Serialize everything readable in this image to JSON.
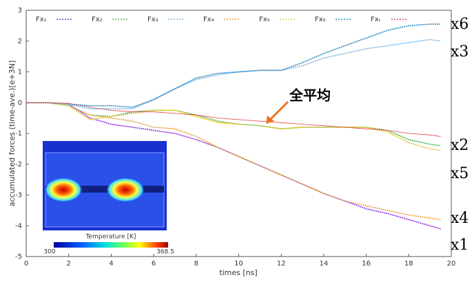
{
  "chart_data": {
    "type": "line",
    "xlabel": "times [ns]",
    "ylabel": "accumulated forces (time-ave.)[e+3N]",
    "x": [
      0,
      1,
      2,
      3,
      4,
      5,
      6,
      7,
      8,
      9,
      10,
      11,
      12,
      13,
      14,
      15,
      16,
      17,
      18,
      19,
      19.5
    ],
    "xlim": [
      0,
      20
    ],
    "xticks": [
      0,
      2,
      4,
      6,
      8,
      10,
      12,
      14,
      16,
      18,
      20
    ],
    "ylim": [
      -5,
      3
    ],
    "yticks": [
      -5,
      -4,
      -3,
      -2,
      -1,
      0,
      1,
      2,
      3
    ],
    "series": [
      {
        "name": "Fx₁",
        "color": "#8a2be2",
        "values": [
          0,
          0,
          -0.05,
          -0.5,
          -0.7,
          -0.8,
          -0.9,
          -1.0,
          -1.2,
          -1.45,
          -1.75,
          -2.05,
          -2.35,
          -2.65,
          -2.95,
          -3.2,
          -3.45,
          -3.6,
          -3.8,
          -4.0,
          -4.1
        ]
      },
      {
        "name": "Fx₂",
        "color": "#4caf50",
        "values": [
          0,
          0,
          -0.1,
          -0.4,
          -0.45,
          -0.3,
          -0.25,
          -0.25,
          -0.4,
          -0.6,
          -0.7,
          -0.75,
          -0.85,
          -0.8,
          -0.8,
          -0.8,
          -0.8,
          -0.9,
          -1.2,
          -1.35,
          -1.4
        ]
      },
      {
        "name": "Fx₃",
        "color": "#7ab8e8",
        "values": [
          0,
          0,
          -0.05,
          -0.2,
          -0.2,
          -0.2,
          0.1,
          0.45,
          0.75,
          0.9,
          1.0,
          1.05,
          1.05,
          1.2,
          1.45,
          1.6,
          1.75,
          1.85,
          1.95,
          2.05,
          2.0
        ]
      },
      {
        "name": "Fx₄",
        "color": "#f0a030",
        "values": [
          0,
          0,
          -0.1,
          -0.4,
          -0.5,
          -0.6,
          -0.8,
          -0.85,
          -1.1,
          -1.45,
          -1.75,
          -2.05,
          -2.35,
          -2.65,
          -2.95,
          -3.2,
          -3.35,
          -3.5,
          -3.65,
          -3.75,
          -3.8
        ]
      },
      {
        "name": "Fx₅",
        "color": "#e6c820",
        "values": [
          0,
          0,
          -0.1,
          -0.55,
          -0.45,
          -0.35,
          -0.25,
          -0.25,
          -0.45,
          -0.65,
          -0.7,
          -0.75,
          -0.85,
          -0.8,
          -0.8,
          -0.8,
          -0.8,
          -0.95,
          -1.3,
          -1.5,
          -1.55
        ]
      },
      {
        "name": "Fx₆",
        "color": "#2a8ac0",
        "values": [
          0,
          0,
          -0.05,
          -0.1,
          -0.1,
          -0.15,
          0.1,
          0.45,
          0.8,
          0.95,
          1.0,
          1.05,
          1.05,
          1.3,
          1.6,
          1.85,
          2.1,
          2.35,
          2.5,
          2.55,
          2.55
        ]
      },
      {
        "name": "Fxₜ",
        "color": "#e04040",
        "values": [
          0,
          0,
          -0.02,
          -0.15,
          -0.25,
          -0.3,
          -0.3,
          -0.35,
          -0.4,
          -0.5,
          -0.55,
          -0.6,
          -0.65,
          -0.7,
          -0.75,
          -0.8,
          -0.85,
          -0.9,
          -1.0,
          -1.05,
          -1.1
        ]
      }
    ],
    "annotations": [
      "x6",
      "x3",
      "x2",
      "x5",
      "x4",
      "x1",
      "全平均"
    ],
    "inset": {
      "title": "Temperature [K]",
      "colorbar_range": [
        300,
        368.5
      ]
    }
  }
}
